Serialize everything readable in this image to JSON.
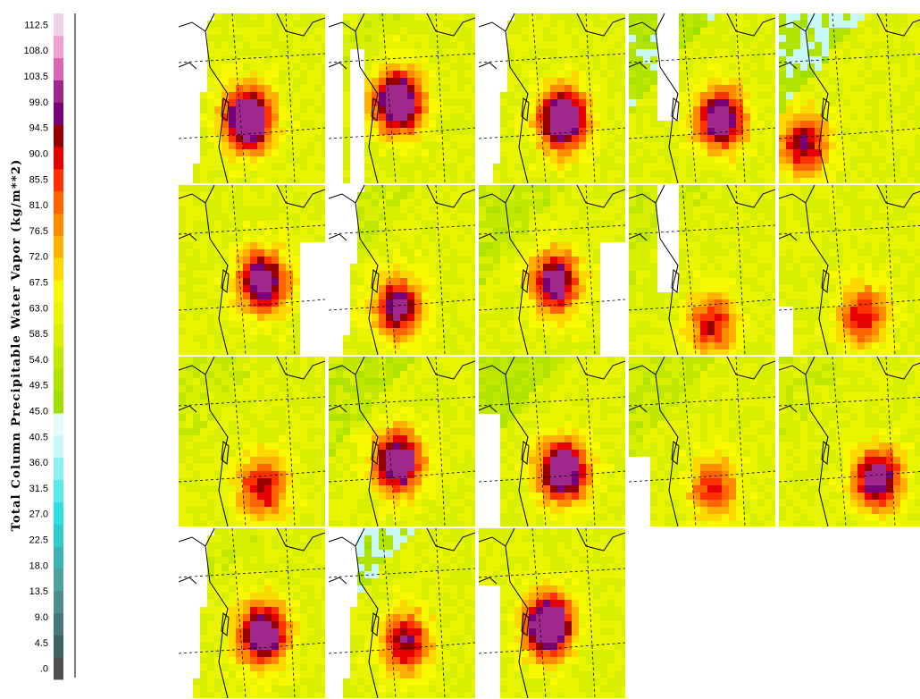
{
  "chart_data": {
    "type": "heatmap",
    "title": "",
    "ylabel": "Total Column Precipitable Water Vapor (kg/m**2)",
    "colorbar": {
      "ticks": [
        ".0",
        "4.5",
        "9.0",
        "13.5",
        "18.0",
        "22.5",
        "27.0",
        "31.5",
        "36.0",
        "40.5",
        "45.0",
        "49.5",
        "54.0",
        "58.5",
        "63.0",
        "67.5",
        "72.0",
        "76.5",
        "81.0",
        "85.5",
        "90.0",
        "94.5",
        "99.0",
        "103.5",
        "108.0",
        "112.5"
      ],
      "range": [
        0,
        112.5
      ],
      "step": 4.5,
      "colors": [
        "#505050",
        "#3c6464",
        "#467878",
        "#4f8c8c",
        "#4fa0a0",
        "#3cb4b4",
        "#2fcccc",
        "#30e0e0",
        "#5aeaea",
        "#8cf0f0",
        "#c8f8f8",
        "#e6fafa",
        "#a0e000",
        "#b0e400",
        "#c0e800",
        "#d8f000",
        "#e8f400",
        "#f8f800",
        "#ffd800",
        "#ffb000",
        "#ff8c00",
        "#ff6400",
        "#ff3200",
        "#e60000",
        "#960000",
        "#780078",
        "#a0288c",
        "#dc64b4",
        "#f0a0d2",
        "#f0d2e6"
      ]
    },
    "panel_grid": {
      "rows": 4,
      "cols": 5,
      "count": 18
    },
    "panels": [
      {
        "storm": [
          0.45,
          0.6
        ],
        "intensity": 1.0,
        "dry": 0.0,
        "missing": "left"
      },
      {
        "storm": [
          0.45,
          0.5
        ],
        "intensity": 0.95,
        "dry": 0.1,
        "missing": "leftstrip"
      },
      {
        "storm": [
          0.55,
          0.6
        ],
        "intensity": 0.95,
        "dry": 0.0,
        "missing": "left"
      },
      {
        "storm": [
          0.6,
          0.6
        ],
        "intensity": 0.8,
        "dry": 0.6,
        "missing": "leftmid"
      },
      {
        "storm": [
          0.15,
          0.75
        ],
        "intensity": 0.6,
        "dry": 0.7,
        "missing": "none"
      },
      {
        "storm": [
          0.55,
          0.55
        ],
        "intensity": 0.8,
        "dry": 0.0,
        "missing": "right"
      },
      {
        "storm": [
          0.45,
          0.7
        ],
        "intensity": 0.7,
        "dry": 0.2,
        "missing": "left"
      },
      {
        "storm": [
          0.5,
          0.55
        ],
        "intensity": 0.75,
        "dry": 0.3,
        "missing": "right"
      },
      {
        "storm": [
          0.55,
          0.8
        ],
        "intensity": 0.5,
        "dry": 0.2,
        "missing": "leftmid"
      },
      {
        "storm": [
          0.55,
          0.75
        ],
        "intensity": 0.5,
        "dry": 0.0,
        "missing": "leftsmall"
      },
      {
        "storm": [
          0.55,
          0.75
        ],
        "intensity": 0.55,
        "dry": 0.2,
        "missing": "none"
      },
      {
        "storm": [
          0.45,
          0.6
        ],
        "intensity": 0.85,
        "dry": 0.4,
        "missing": "none"
      },
      {
        "storm": [
          0.55,
          0.65
        ],
        "intensity": 0.9,
        "dry": 0.5,
        "missing": "leftbig"
      },
      {
        "storm": [
          0.55,
          0.75
        ],
        "intensity": 0.45,
        "dry": 0.3,
        "missing": "leftbottom"
      },
      {
        "storm": [
          0.65,
          0.7
        ],
        "intensity": 0.75,
        "dry": 0.1,
        "missing": "none"
      },
      {
        "storm": [
          0.55,
          0.6
        ],
        "intensity": 0.85,
        "dry": 0.1,
        "missing": "left"
      },
      {
        "storm": [
          0.5,
          0.65
        ],
        "intensity": 0.6,
        "dry": 0.8,
        "missing": "left"
      },
      {
        "storm": [
          0.45,
          0.55
        ],
        "intensity": 1.0,
        "dry": 0.0,
        "missing": "leftbig"
      }
    ]
  }
}
